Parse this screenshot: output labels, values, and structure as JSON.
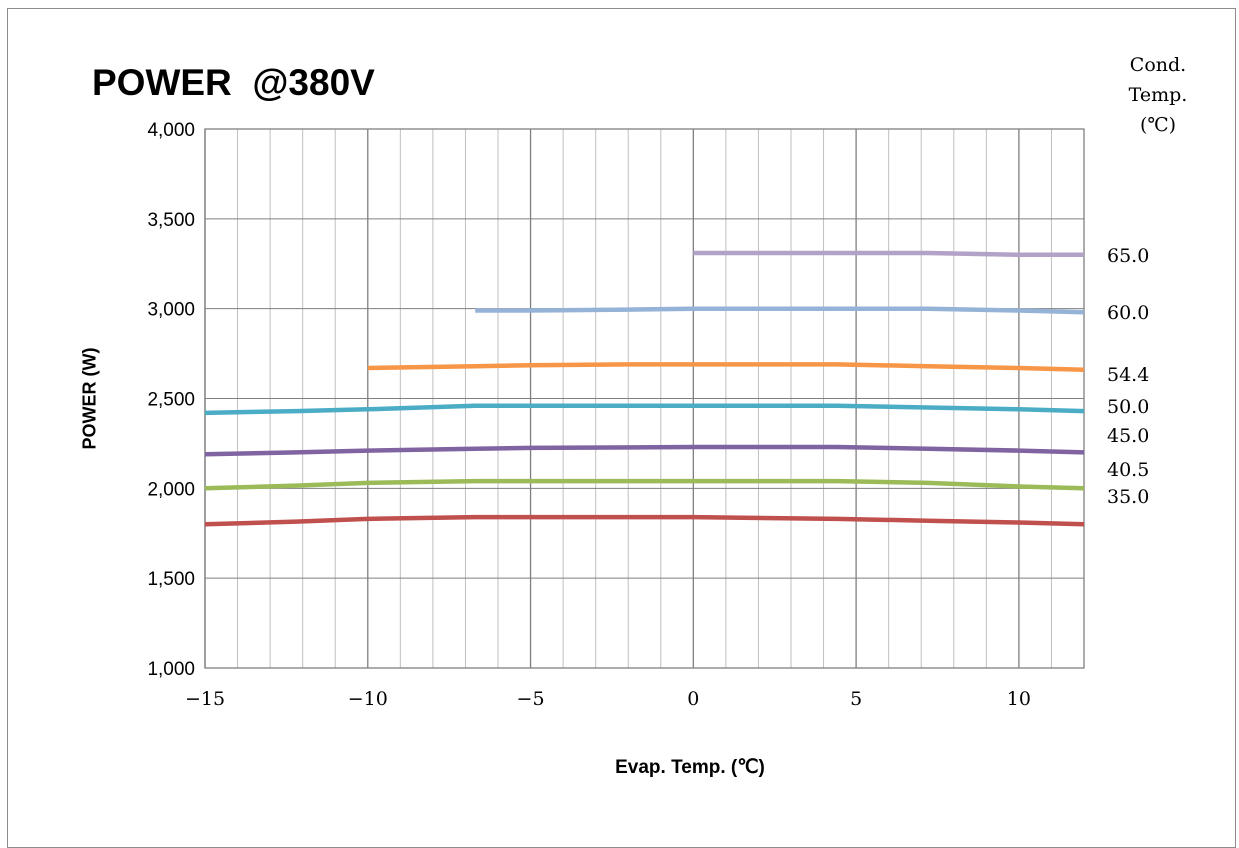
{
  "chart_data": {
    "type": "line",
    "title": "POWER  @380V",
    "xlabel": "Evap. Temp. (℃)",
    "ylabel": "POWER (W)",
    "legend_title": [
      "Cond.",
      "Temp.",
      "(℃)"
    ],
    "legend_placement": "right",
    "xlim": [
      -15,
      12
    ],
    "ylim": [
      1000,
      4000
    ],
    "x_ticks": [
      -15,
      -10,
      -5,
      0,
      5,
      10
    ],
    "x_tick_labels": [
      "−15",
      "−10",
      "−5",
      "0",
      "5",
      "10"
    ],
    "y_ticks": [
      1000,
      1500,
      2000,
      2500,
      3000,
      3500,
      4000
    ],
    "y_tick_labels": [
      "1,000",
      "1,500",
      "2,000",
      "2,500",
      "3,000",
      "3,500",
      "4,000"
    ],
    "grid": true,
    "series": [
      {
        "name": "65.0",
        "color": "#b3a2c7",
        "x": [
          0,
          4.4,
          7.2,
          10,
          12
        ],
        "y": [
          3310,
          3310,
          3310,
          3300,
          3300
        ]
      },
      {
        "name": "60.0",
        "color": "#95b3d7",
        "x": [
          -6.7,
          -5,
          -2,
          0,
          4.4,
          7.2,
          10,
          12
        ],
        "y": [
          2990,
          2990,
          2995,
          3000,
          3000,
          3000,
          2990,
          2980
        ]
      },
      {
        "name": "54.4",
        "color": "#f79646",
        "x": [
          -10,
          -6.7,
          -5,
          -2,
          0,
          4.4,
          7.2,
          10,
          12
        ],
        "y": [
          2670,
          2680,
          2685,
          2690,
          2690,
          2690,
          2680,
          2670,
          2660
        ]
      },
      {
        "name": "50.0",
        "color": "#4bacc6",
        "x": [
          -15,
          -12.2,
          -10,
          -6.7,
          -5,
          0,
          4.4,
          7.2,
          10,
          12
        ],
        "y": [
          2420,
          2430,
          2440,
          2460,
          2460,
          2460,
          2460,
          2450,
          2440,
          2430
        ]
      },
      {
        "name": "45.0",
        "color": "#8064a2",
        "x": [
          -15,
          -12.2,
          -10,
          -6.7,
          -5,
          0,
          4.4,
          7.2,
          10,
          12
        ],
        "y": [
          2190,
          2200,
          2210,
          2220,
          2225,
          2230,
          2230,
          2220,
          2210,
          2200
        ]
      },
      {
        "name": "40.5",
        "color": "#9bbb59",
        "x": [
          -15,
          -12.2,
          -10,
          -6.7,
          -5,
          0,
          4.4,
          7.2,
          10,
          12
        ],
        "y": [
          2000,
          2015,
          2030,
          2040,
          2040,
          2040,
          2040,
          2030,
          2010,
          2000
        ]
      },
      {
        "name": "35.0",
        "color": "#c0504d",
        "x": [
          -15,
          -12.2,
          -10,
          -6.7,
          -5,
          0,
          4.4,
          7.2,
          10,
          12
        ],
        "y": [
          1800,
          1815,
          1830,
          1840,
          1840,
          1840,
          1830,
          1820,
          1810,
          1800
        ]
      }
    ],
    "series_label_order": [
      "65.0",
      "60.0",
      "54.4",
      "50.0",
      "45.0",
      "40.5",
      "35.0"
    ]
  }
}
